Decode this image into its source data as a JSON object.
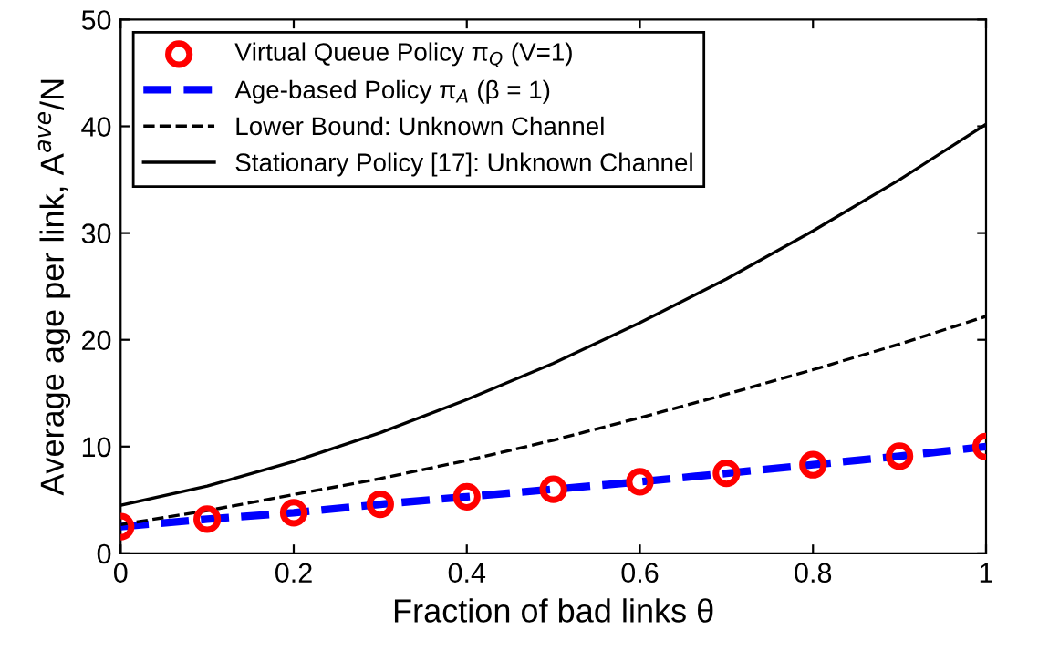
{
  "chart_data": {
    "type": "line",
    "xlabel": "Fraction of bad links θ",
    "ylabel": "Average age per link, A$^{ave}$/N",
    "x": [
      0,
      0.1,
      0.2,
      0.3,
      0.4,
      0.5,
      0.6,
      0.7,
      0.8,
      0.9,
      1
    ],
    "xlim": [
      0,
      1
    ],
    "xticks": [
      0,
      0.2,
      0.4,
      0.6,
      0.8,
      1
    ],
    "ylim": [
      0,
      50
    ],
    "yticks": [
      0,
      10,
      20,
      30,
      40,
      50
    ],
    "legend": "top left",
    "grid": false,
    "series": [
      {
        "name": "Virtual Queue Policy π$_{Q}$ (V=1)",
        "type": "scatter",
        "marker": "circle",
        "color": "#ff0000",
        "values": [
          2.5,
          3.2,
          3.8,
          4.6,
          5.3,
          6.0,
          6.7,
          7.5,
          8.3,
          9.1,
          10.0
        ]
      },
      {
        "name": "Age-based Policy π$_{A}$ (β = 1)",
        "type": "line",
        "line_style": "dashed",
        "color": "#0000ff",
        "values": [
          2.5,
          3.2,
          3.8,
          4.6,
          5.3,
          6.0,
          6.7,
          7.5,
          8.3,
          9.1,
          10.0
        ]
      },
      {
        "name": "Lower Bound: Unknown Channel",
        "line_style": "dashed",
        "color": "#000000",
        "values": [
          2.7,
          4.0,
          5.5,
          7.0,
          8.7,
          10.6,
          12.7,
          14.9,
          17.2,
          19.6,
          22.2
        ]
      },
      {
        "name": "Stationary Policy [17]: Unknown Channel",
        "line_style": "solid",
        "color": "#000000",
        "values": [
          4.5,
          6.3,
          8.6,
          11.3,
          14.4,
          17.8,
          21.6,
          25.7,
          30.2,
          35.0,
          40.2
        ]
      }
    ]
  }
}
